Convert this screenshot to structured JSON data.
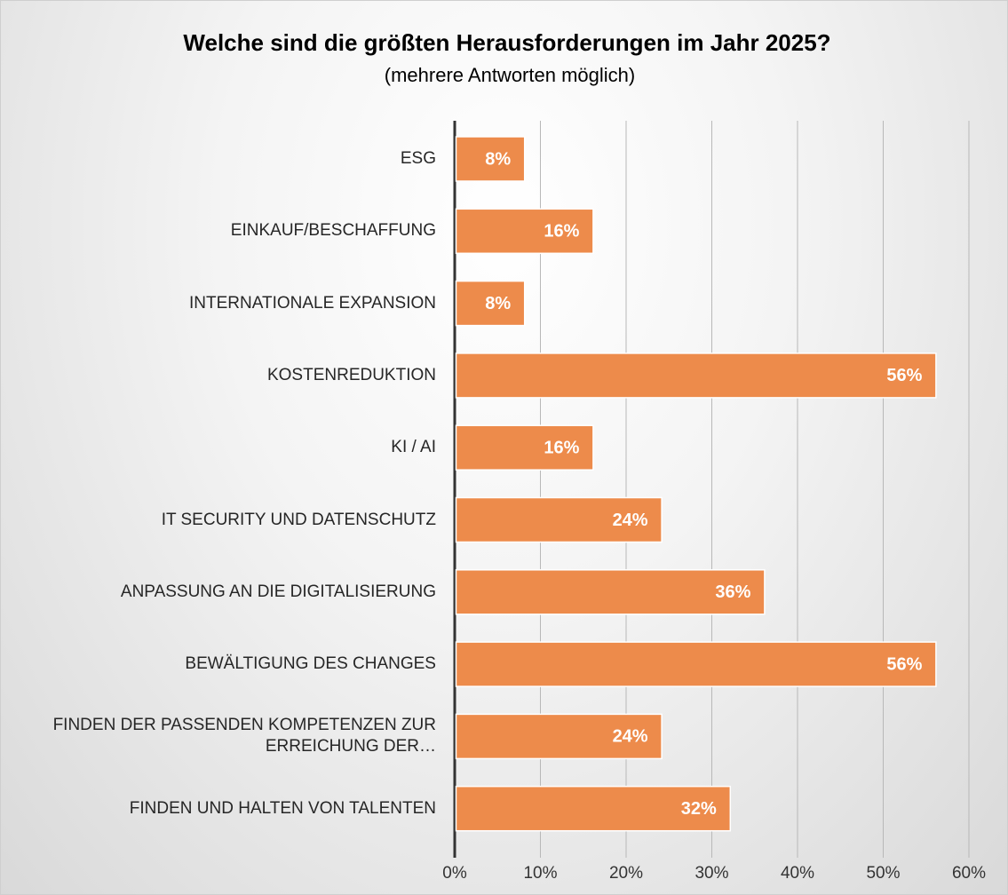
{
  "chart_data": {
    "type": "bar",
    "orientation": "horizontal",
    "title": "Welche sind die größten Herausforderungen im Jahr 2025?",
    "subtitle": "(mehrere Antworten möglich)",
    "categories": [
      "ESG",
      "EINKAUF/BESCHAFFUNG",
      "INTERNATIONALE EXPANSION",
      "KOSTENREDUKTION",
      "KI / AI",
      "IT SECURITY UND DATENSCHUTZ",
      "ANPASSUNG AN DIE DIGITALISIERUNG",
      "BEWÄLTIGUNG DES CHANGES",
      "FINDEN DER PASSENDEN KOMPETENZEN ZUR ERREICHUNG DER…",
      "FINDEN UND HALTEN VON TALENTEN"
    ],
    "values": [
      8,
      16,
      8,
      56,
      16,
      24,
      36,
      56,
      24,
      32
    ],
    "value_labels": [
      "8%",
      "16%",
      "8%",
      "56%",
      "16%",
      "24%",
      "36%",
      "56%",
      "24%",
      "32%"
    ],
    "color": "#ed8b4b",
    "xlim": [
      0,
      60
    ],
    "xticks": [
      {
        "value": 0,
        "label": "0%"
      },
      {
        "value": 10,
        "label": "10%"
      },
      {
        "value": 20,
        "label": "20%"
      },
      {
        "value": 30,
        "label": "30%"
      },
      {
        "value": 40,
        "label": "40%"
      },
      {
        "value": 50,
        "label": "50%"
      },
      {
        "value": 60,
        "label": "60%"
      }
    ],
    "grid": true
  }
}
